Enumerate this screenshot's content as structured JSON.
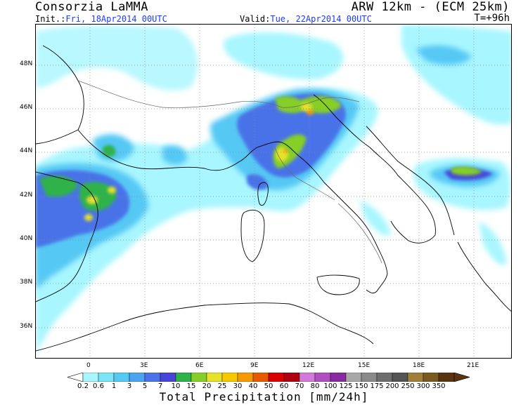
{
  "header": {
    "title_left": "Consorzia LaMMA",
    "title_right": "ARW 12km - (ECM 25km)",
    "init_label": "Init.:",
    "init_value": "Fri, 18Apr2014 00UTC",
    "valid_label": "Valid:",
    "valid_value": "Tue, 22Apr2014 00UTC",
    "step": "T=+96h"
  },
  "map": {
    "lat_labels": [
      "48N",
      "46N",
      "44N",
      "42N",
      "40N",
      "38N",
      "36N"
    ],
    "lon_labels": [
      "0",
      "3E",
      "6E",
      "9E",
      "12E",
      "15E",
      "18E",
      "21E"
    ]
  },
  "legend": {
    "title": "Total Precipitation [mm/24h]",
    "levels": [
      "0.2",
      "0.6",
      "1",
      "3",
      "5",
      "7",
      "10",
      "15",
      "20",
      "25",
      "30",
      "40",
      "50",
      "60",
      "70",
      "80",
      "100",
      "125",
      "150",
      "175",
      "200",
      "250",
      "300",
      "350"
    ],
    "colors": [
      "#a8f6ff",
      "#7be4f8",
      "#55c8f4",
      "#4aa4ee",
      "#4b72e8",
      "#4646d8",
      "#2eb24a",
      "#86cf28",
      "#e6e22a",
      "#f7c800",
      "#f59a00",
      "#e85a00",
      "#d80000",
      "#b00010",
      "#d27ad8",
      "#b050c0",
      "#8a2aa0",
      "#a8a8a8",
      "#8a8a8a",
      "#6e6e6e",
      "#545454",
      "#a08038",
      "#7a5a20",
      "#5a3410"
    ],
    "below_color": "#ffffff",
    "above_color": "#5a3410"
  }
}
